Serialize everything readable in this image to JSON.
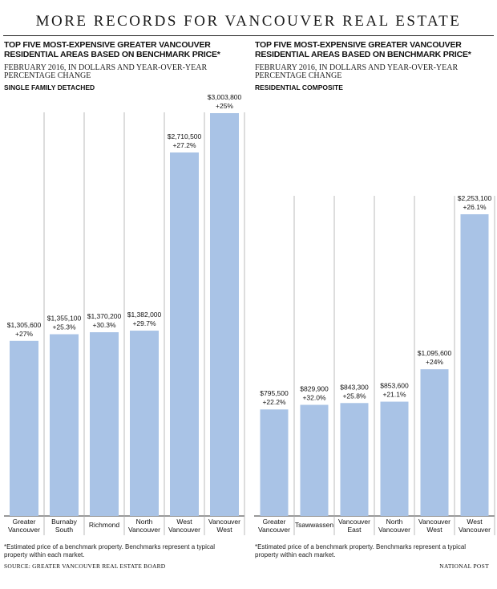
{
  "header": {
    "title": "MORE RECORDS FOR VANCOUVER REAL ESTATE"
  },
  "left_panel": {
    "title": "TOP FIVE MOST-EXPENSIVE GREATER VANCOUVER RESIDENTIAL AREAS BASED ON BENCHMARK PRICE*",
    "subtitle": "FEBRUARY 2016, IN DOLLARS AND YEAR-OVER-YEAR PERCENTAGE CHANGE",
    "series_label": "SINGLE FAMILY DETACHED",
    "footnote": "*Estimated price of a benchmark property. Benchmarks represent a typical property within each market."
  },
  "right_panel": {
    "title": "TOP FIVE MOST-EXPENSIVE GREATER VANCOUVER RESIDENTIAL AREAS BASED ON BENCHMARK PRICE*",
    "subtitle": "FEBRUARY 2016, IN DOLLARS AND YEAR-OVER-YEAR PERCENTAGE CHANGE",
    "series_label": "RESIDENTIAL COMPOSITE",
    "footnote": "*Estimated price of a benchmark property. Benchmarks represent a typical property within each market."
  },
  "footer": {
    "source": "SOURCE: GREATER VANCOUVER REAL ESTATE BOARD",
    "credit": "NATIONAL POST"
  },
  "colors": {
    "bar": "#a9c3e6",
    "divider": "#aaaaaa",
    "text": "#111111"
  },
  "chart_data": [
    {
      "type": "bar",
      "title": "SINGLE FAMILY DETACHED",
      "categories": [
        [
          "Greater",
          "Vancouver"
        ],
        [
          "Burnaby",
          "South"
        ],
        [
          "Richmond"
        ],
        [
          "North",
          "Vancouver"
        ],
        [
          "West",
          "Vancouver"
        ],
        [
          "Vancouver",
          "West"
        ]
      ],
      "values": [
        1305600,
        1355100,
        1370200,
        1382000,
        2710500,
        3003800
      ],
      "value_labels": [
        "$1,305,600",
        "$1,355,100",
        "$1,370,200",
        "$1,382,000",
        "$2,710,500",
        "$3,003,800"
      ],
      "change_labels": [
        "+27%",
        "+25.3%",
        "+30.3%",
        "+29.7%",
        "+27.2%",
        "+25%"
      ],
      "ylim": [
        0,
        3003800
      ]
    },
    {
      "type": "bar",
      "title": "RESIDENTIAL COMPOSITE",
      "categories": [
        [
          "Greater",
          "Vancouver"
        ],
        [
          "Tsawwassen"
        ],
        [
          "Vancouver",
          "East"
        ],
        [
          "North",
          "Vancouver"
        ],
        [
          "Vancouver",
          "West"
        ],
        [
          "West",
          "Vancouver"
        ]
      ],
      "values": [
        795500,
        829900,
        843300,
        853600,
        1095600,
        2253100
      ],
      "value_labels": [
        "$795,500",
        "$829,900",
        "$843,300",
        "$853,600",
        "$1,095,600",
        "$2,253,100"
      ],
      "change_labels": [
        "+22.2%",
        "+32.0%",
        "+25.8%",
        "+21.1%",
        "+24%",
        "+26.1%"
      ],
      "ylim": [
        0,
        2253100
      ]
    }
  ]
}
